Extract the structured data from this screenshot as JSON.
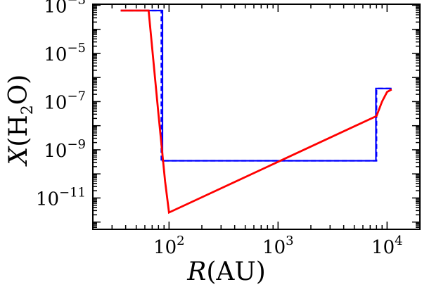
{
  "chart_data": {
    "type": "line",
    "xlabel": "R(AU)",
    "ylabel": "X(H2O)",
    "xscale": "log",
    "yscale": "log",
    "xlim": [
      20,
      20000
    ],
    "ylim": [
      5e-13,
      0.0011
    ],
    "x_ticks": [
      {
        "value": 100,
        "base": "10",
        "exp": "2"
      },
      {
        "value": 1000,
        "base": "10",
        "exp": "3"
      },
      {
        "value": 10000,
        "base": "10",
        "exp": "4"
      }
    ],
    "y_ticks": [
      {
        "value": 0.001,
        "base": "10",
        "exp": "−3"
      },
      {
        "value": 1e-05,
        "base": "10",
        "exp": "−5"
      },
      {
        "value": 1e-07,
        "base": "10",
        "exp": "−7"
      },
      {
        "value": 1e-09,
        "base": "10",
        "exp": "−9"
      },
      {
        "value": 1e-11,
        "base": "10",
        "exp": "−11"
      }
    ],
    "grid": false,
    "legend": "none",
    "series": [
      {
        "color": "#0000ff",
        "style": "dashed",
        "x": [
          36,
          85,
          85,
          8000,
          8000,
          11000
        ],
        "y": [
          0.0006,
          0.0006,
          3.5e-10,
          3.5e-10,
          3.5e-07,
          3.5e-07
        ]
      },
      {
        "color": "#0000ff",
        "style": "solid",
        "x": [
          36,
          87,
          87,
          7900,
          7900,
          11000
        ],
        "y": [
          0.0006,
          0.0006,
          3.5e-10,
          3.5e-10,
          3.5e-07,
          3.5e-07
        ]
      },
      {
        "color": "#ff0000",
        "style": "solid",
        "x": [
          36,
          65,
          80,
          92,
          100,
          8000,
          9000,
          10000,
          11000
        ],
        "y": [
          0.0006,
          0.0006,
          3e-08,
          5e-11,
          2.5e-12,
          2.5e-08,
          1e-07,
          2.5e-07,
          3.2e-07
        ]
      }
    ]
  }
}
